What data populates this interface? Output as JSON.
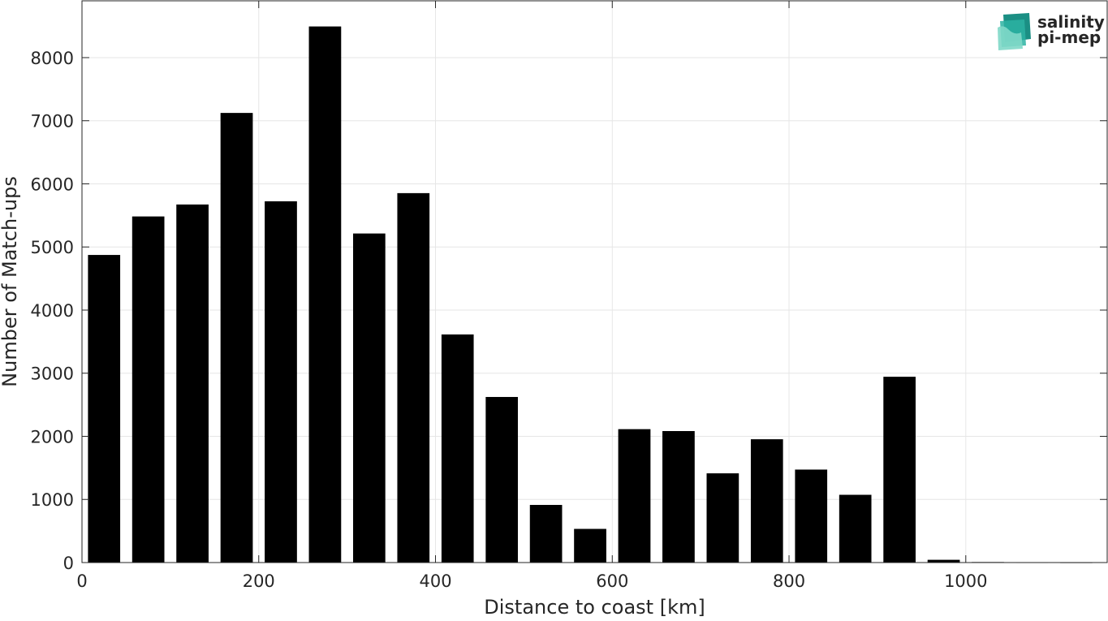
{
  "chart_data": {
    "type": "bar",
    "title": "",
    "xlabel": "Distance to coast [km]",
    "ylabel": "Number of Match-ups",
    "xlim": [
      0,
      1160
    ],
    "ylim": [
      0,
      8900
    ],
    "xticks": [
      0,
      200,
      400,
      600,
      800,
      1000
    ],
    "yticks": [
      0,
      1000,
      2000,
      3000,
      4000,
      5000,
      6000,
      7000,
      8000
    ],
    "bin_width": 50,
    "bar_fraction": 0.72,
    "grid": true,
    "bar_color": "#000000",
    "x": [
      25,
      75,
      125,
      175,
      225,
      275,
      325,
      375,
      425,
      475,
      525,
      575,
      625,
      675,
      725,
      775,
      825,
      875,
      925,
      975,
      1025,
      1075,
      1125
    ],
    "values": [
      4870,
      5480,
      5670,
      7120,
      5720,
      8490,
      5210,
      5850,
      3610,
      2620,
      910,
      530,
      2110,
      2080,
      1410,
      1950,
      1470,
      1070,
      2940,
      40,
      5,
      3,
      2
    ]
  },
  "logo": {
    "line1": "salinity",
    "line2": "pi-mep",
    "color": "#1fa596"
  }
}
